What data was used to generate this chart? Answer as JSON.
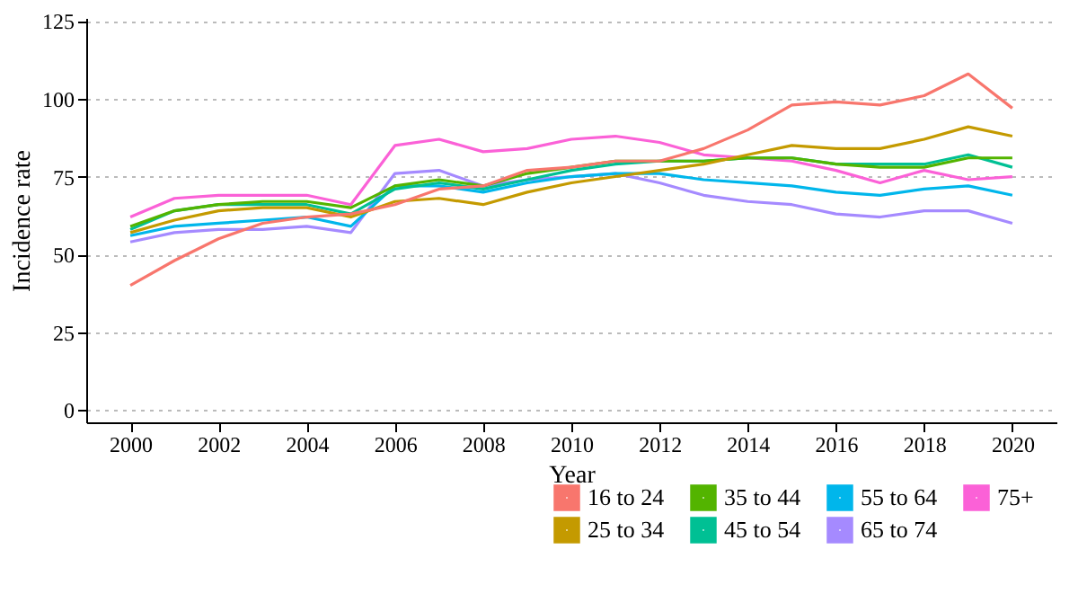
{
  "chart_data": {
    "type": "line",
    "xlabel": "Year",
    "ylabel": "Incidence rate",
    "x": [
      2000,
      2001,
      2002,
      2003,
      2004,
      2005,
      2006,
      2007,
      2008,
      2009,
      2010,
      2011,
      2012,
      2013,
      2014,
      2015,
      2016,
      2017,
      2018,
      2019,
      2020
    ],
    "xlim": [
      1999,
      2021
    ],
    "xticks": [
      2000,
      2002,
      2004,
      2006,
      2008,
      2010,
      2012,
      2014,
      2016,
      2018,
      2020
    ],
    "ylim": [
      -4,
      126
    ],
    "yticks": [
      0,
      25,
      50,
      75,
      100,
      125
    ],
    "grid": "y",
    "legend": "bottom right",
    "marker": "none",
    "line_style": "solid",
    "series": [
      {
        "name": "16 to 24",
        "color": "#f8766d",
        "values": [
          40,
          48,
          55,
          60,
          62,
          63,
          66,
          71,
          72,
          77,
          78,
          80,
          80,
          84,
          90,
          98,
          99,
          98,
          101,
          108,
          97
        ]
      },
      {
        "name": "25 to 34",
        "color": "#c49a00",
        "values": [
          57,
          61,
          64,
          65,
          65,
          62,
          67,
          68,
          66,
          70,
          73,
          75,
          77,
          79,
          82,
          85,
          84,
          84,
          87,
          91,
          88
        ]
      },
      {
        "name": "35 to 44",
        "color": "#53b400",
        "values": [
          59,
          64,
          66,
          67,
          67,
          65,
          72,
          74,
          72,
          76,
          78,
          80,
          80,
          80,
          81,
          81,
          79,
          78,
          78,
          81,
          81
        ]
      },
      {
        "name": "45 to 54",
        "color": "#00c094",
        "values": [
          58,
          64,
          66,
          66,
          66,
          63,
          71,
          73,
          71,
          74,
          77,
          79,
          80,
          80,
          81,
          81,
          79,
          79,
          79,
          82,
          78
        ]
      },
      {
        "name": "55 to 64",
        "color": "#00b6eb",
        "values": [
          56,
          59,
          60,
          61,
          62,
          59,
          72,
          72,
          70,
          73,
          75,
          76,
          76,
          74,
          73,
          72,
          70,
          69,
          71,
          72,
          69
        ]
      },
      {
        "name": "65 to 74",
        "color": "#a58aff",
        "values": [
          54,
          57,
          58,
          58,
          59,
          57,
          76,
          77,
          72,
          74,
          75,
          76,
          73,
          69,
          67,
          66,
          63,
          62,
          64,
          64,
          60
        ]
      },
      {
        "name": "75+",
        "color": "#fb61d7",
        "values": [
          62,
          68,
          69,
          69,
          69,
          66,
          85,
          87,
          83,
          84,
          87,
          88,
          86,
          82,
          81,
          80,
          77,
          73,
          77,
          74,
          75
        ]
      }
    ]
  }
}
